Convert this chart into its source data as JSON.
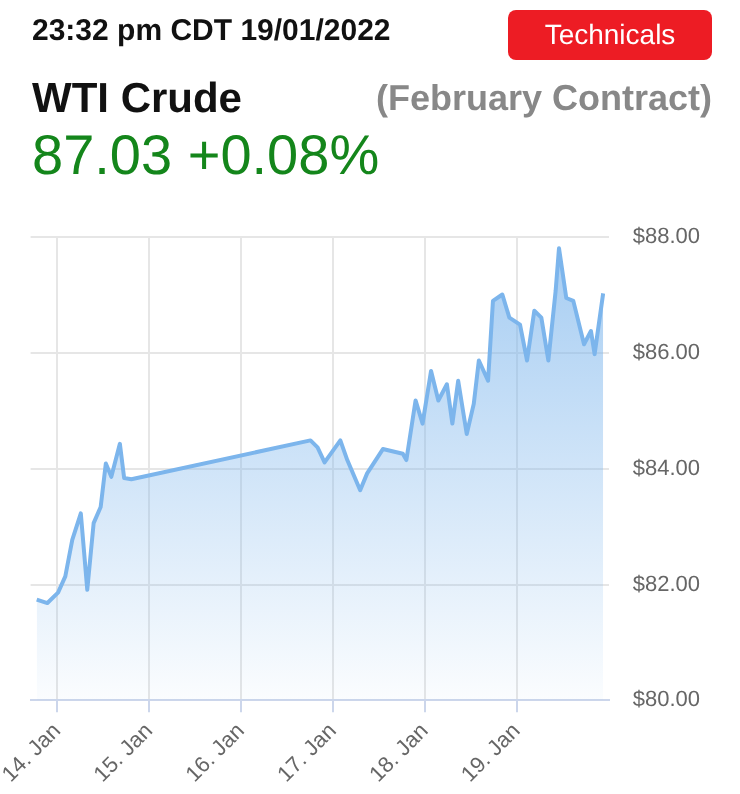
{
  "chart_data": {
    "type": "area",
    "title": "WTI Crude",
    "subtitle": "(February Contract)",
    "annotations": [
      "23:32 pm CDT 19/01/2022",
      "87.03 +0.08%",
      "Technicals"
    ],
    "x": [
      "2022-01-13T18:36",
      "2022-01-13T21:23",
      "2022-01-14T00:10",
      "2022-01-14T02:04",
      "2022-01-14T03:53",
      "2022-01-14T06:07",
      "2022-01-14T07:48",
      "2022-01-14T09:28",
      "2022-01-14T11:18",
      "2022-01-14T12:39",
      "2022-01-14T14:05",
      "2022-01-14T16:19",
      "2022-01-14T17:26",
      "2022-01-14T19:19",
      "2022-01-16T18:06",
      "2022-01-16T19:57",
      "2022-01-16T21:47",
      "2022-01-17T01:54",
      "2022-01-17T03:43",
      "2022-01-17T07:05",
      "2022-01-17T08:54",
      "2022-01-17T13:01",
      "2022-01-17T18:13",
      "2022-01-17T19:09",
      "2022-01-17T21:33",
      "2022-01-17T23:23",
      "2022-01-18T01:36",
      "2022-01-18T03:30",
      "2022-01-18T05:44",
      "2022-01-18T07:10",
      "2022-01-18T08:41",
      "2022-01-18T10:55",
      "2022-01-18T12:45",
      "2022-01-18T14:05",
      "2022-01-18T16:29",
      "2022-01-18T17:46",
      "2022-01-18T20:13",
      "2022-01-18T22:03",
      "2022-01-19T00:50",
      "2022-01-19T02:40",
      "2022-01-19T04:34",
      "2022-01-19T06:24",
      "2022-01-19T08:14",
      "2022-01-19T10:08",
      "2022-01-19T11:01",
      "2022-01-19T12:55",
      "2022-01-19T14:45",
      "2022-01-19T17:33",
      "2022-01-19T19:22",
      "2022-01-19T20:19",
      "2022-01-19T22:33"
    ],
    "series": [
      {
        "color": "#7cb5ec",
        "values": [
          81.74,
          81.68,
          81.86,
          82.14,
          82.77,
          83.23,
          81.91,
          83.06,
          83.34,
          84.09,
          83.86,
          84.43,
          83.84,
          83.82,
          84.49,
          84.37,
          84.11,
          84.49,
          84.15,
          83.63,
          83.92,
          84.34,
          84.26,
          84.15,
          85.18,
          84.78,
          85.69,
          85.18,
          85.46,
          84.78,
          85.52,
          84.6,
          85.12,
          85.87,
          85.52,
          86.9,
          87.01,
          86.61,
          86.49,
          85.87,
          86.73,
          86.61,
          85.87,
          87.07,
          87.81,
          86.95,
          86.9,
          86.15,
          86.38,
          85.98,
          87.03
        ]
      }
    ],
    "xlim": [
      "2022-01-13T17:00",
      "2022-01-20T00:00"
    ],
    "xticks": [
      {
        "value": "2022-01-14",
        "label": "14. Jan"
      },
      {
        "value": "2022-01-15",
        "label": "15. Jan"
      },
      {
        "value": "2022-01-16",
        "label": "16. Jan"
      },
      {
        "value": "2022-01-17",
        "label": "17. Jan"
      },
      {
        "value": "2022-01-18",
        "label": "18. Jan"
      },
      {
        "value": "2022-01-19",
        "label": "19. Jan"
      }
    ],
    "ylim": [
      80,
      88
    ],
    "yticks": [
      {
        "value": 80,
        "label": "$80.00"
      },
      {
        "value": 82,
        "label": "$82.00"
      },
      {
        "value": 84,
        "label": "$84.00"
      },
      {
        "value": 86,
        "label": "$86.00"
      },
      {
        "value": 88,
        "label": "$88.00"
      }
    ],
    "grid": true,
    "legend": false,
    "marker": "none",
    "line_style": "solid"
  }
}
